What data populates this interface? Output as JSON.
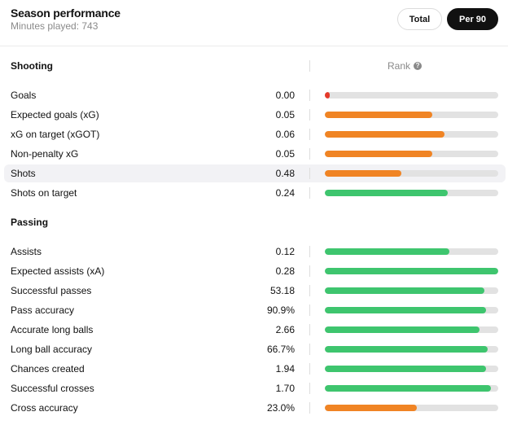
{
  "header": {
    "title": "Season performance",
    "subtitle": "Minutes played: 743",
    "toggle_total": "Total",
    "toggle_per90": "Per 90"
  },
  "rank_label": "Rank",
  "colors": {
    "good": "#3ec56e",
    "average": "#f08424",
    "poor": "#e53a2a",
    "track": "#e2e2e2"
  },
  "sections": [
    {
      "title": "Shooting",
      "rows": [
        {
          "label": "Goals",
          "value": "0.00",
          "rank_fraction": 0.02,
          "color": "#e53a2a",
          "highlight": false
        },
        {
          "label": "Expected goals (xG)",
          "value": "0.05",
          "rank_fraction": 0.62,
          "color": "#f08424",
          "highlight": false
        },
        {
          "label": "xG on target (xGOT)",
          "value": "0.06",
          "rank_fraction": 0.69,
          "color": "#f08424",
          "highlight": false
        },
        {
          "label": "Non-penalty xG",
          "value": "0.05",
          "rank_fraction": 0.62,
          "color": "#f08424",
          "highlight": false
        },
        {
          "label": "Shots",
          "value": "0.48",
          "rank_fraction": 0.44,
          "color": "#f08424",
          "highlight": true
        },
        {
          "label": "Shots on target",
          "value": "0.24",
          "rank_fraction": 0.71,
          "color": "#3ec56e",
          "highlight": false
        }
      ]
    },
    {
      "title": "Passing",
      "rows": [
        {
          "label": "Assists",
          "value": "0.12",
          "rank_fraction": 0.72,
          "color": "#3ec56e",
          "highlight": false
        },
        {
          "label": "Expected assists (xA)",
          "value": "0.28",
          "rank_fraction": 1.0,
          "color": "#3ec56e",
          "highlight": false
        },
        {
          "label": "Successful passes",
          "value": "53.18",
          "rank_fraction": 0.92,
          "color": "#3ec56e",
          "highlight": false
        },
        {
          "label": "Pass accuracy",
          "value": "90.9%",
          "rank_fraction": 0.93,
          "color": "#3ec56e",
          "highlight": false
        },
        {
          "label": "Accurate long balls",
          "value": "2.66",
          "rank_fraction": 0.89,
          "color": "#3ec56e",
          "highlight": false
        },
        {
          "label": "Long ball accuracy",
          "value": "66.7%",
          "rank_fraction": 0.94,
          "color": "#3ec56e",
          "highlight": false
        },
        {
          "label": "Chances created",
          "value": "1.94",
          "rank_fraction": 0.93,
          "color": "#3ec56e",
          "highlight": false
        },
        {
          "label": "Successful crosses",
          "value": "1.70",
          "rank_fraction": 0.96,
          "color": "#3ec56e",
          "highlight": false
        },
        {
          "label": "Cross accuracy",
          "value": "23.0%",
          "rank_fraction": 0.53,
          "color": "#f08424",
          "highlight": false
        }
      ]
    }
  ]
}
